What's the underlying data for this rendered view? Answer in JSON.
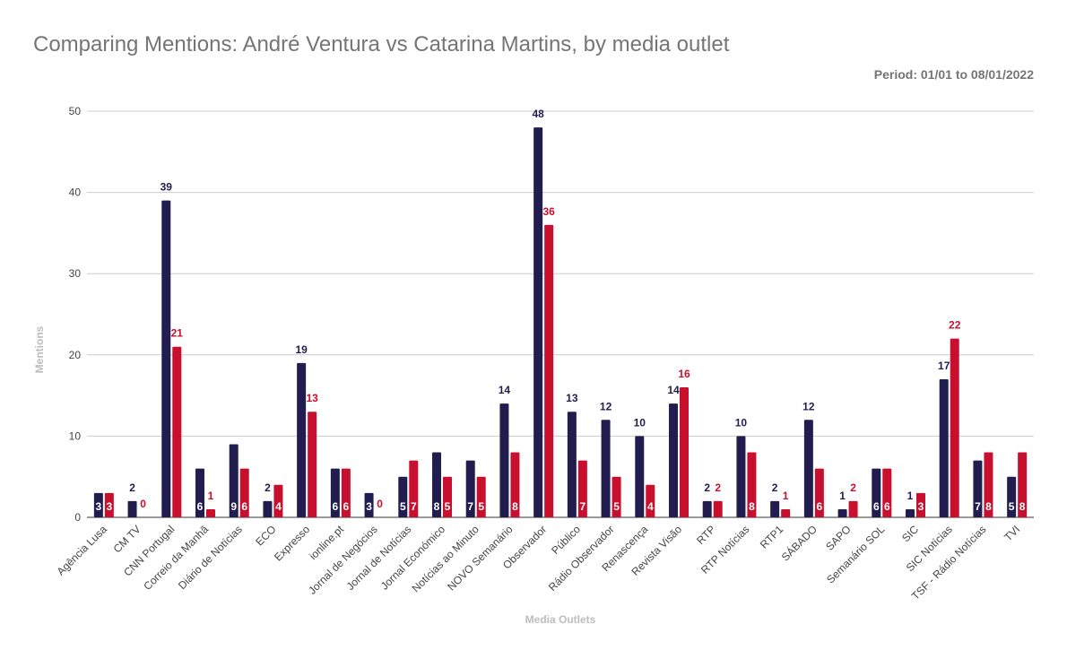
{
  "chart_data": {
    "type": "bar",
    "title": "Comparing Mentions: André Ventura vs Catarina Martins, by media outlet",
    "subtitle": "Period: 01/01 to 08/01/2022",
    "xlabel": "Media Outlets",
    "ylabel": "Mentions",
    "ylim": [
      0,
      50
    ],
    "yticks": [
      0,
      10,
      20,
      30,
      40,
      50
    ],
    "grid": true,
    "colors": {
      "ventura": "#211d4f",
      "martins": "#c8102e"
    },
    "categories": [
      "Agência Lusa",
      "CM TV",
      "CNN Portugal",
      "Correio da Manhã",
      "Diário de Notícias",
      "ECO",
      "Expresso",
      "ionline.pt",
      "Jornal de Negócios",
      "Jornal de Notícias",
      "Jornal Económico",
      "Notícias ao Minuto",
      "NOVO Semanário",
      "Observador",
      "Público",
      "Rádio Observador",
      "Renascença",
      "Revista Visão",
      "RTP",
      "RTP Notícias",
      "RTP1",
      "SÁBADO",
      "SAPO",
      "Semanário SOL",
      "SIC",
      "SIC Notícias",
      "TSF - Rádio Notícias",
      "TVI"
    ],
    "series": [
      {
        "key": "ventura",
        "values": [
          3,
          2,
          39,
          6,
          9,
          2,
          19,
          6,
          3,
          5,
          8,
          7,
          14,
          48,
          13,
          12,
          10,
          14,
          2,
          10,
          2,
          12,
          1,
          6,
          1,
          17,
          7,
          5
        ]
      },
      {
        "key": "martins",
        "values": [
          3,
          0,
          21,
          1,
          6,
          4,
          13,
          6,
          0,
          7,
          5,
          5,
          8,
          36,
          7,
          5,
          4,
          16,
          2,
          8,
          1,
          6,
          2,
          6,
          3,
          22,
          8,
          8
        ]
      }
    ]
  }
}
